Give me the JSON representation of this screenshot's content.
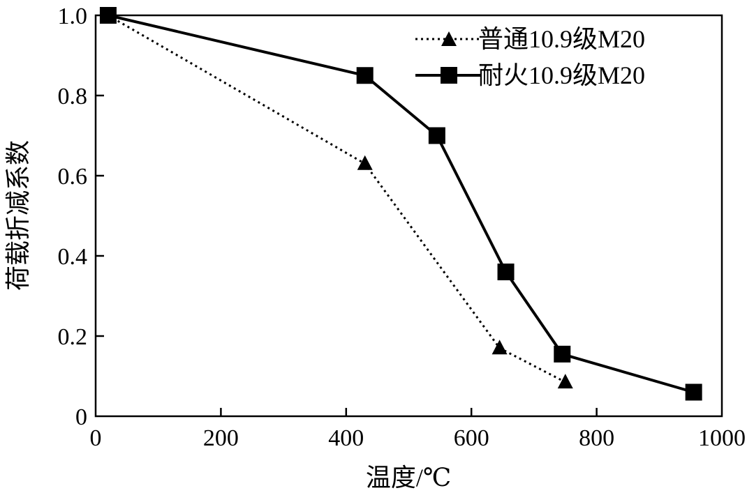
{
  "chart_data": {
    "type": "line",
    "xlabel": "温度/℃",
    "ylabel": "荷载折减系数",
    "xlim": [
      0,
      1000
    ],
    "ylim": [
      0,
      1.0
    ],
    "x_ticks": [
      "0",
      "200",
      "400",
      "600",
      "800",
      "1000"
    ],
    "y_ticks": [
      "0",
      "0.2",
      "0.4",
      "0.6",
      "0.8",
      "1.0"
    ],
    "grid": false,
    "legend_position": "top-right",
    "series": [
      {
        "name": "普通10.9级M20",
        "line_style": "dotted",
        "marker": "triangle",
        "color": "#000000",
        "x": [
          20,
          430,
          645,
          750
        ],
        "y": [
          1.0,
          0.63,
          0.17,
          0.085
        ]
      },
      {
        "name": "耐火10.9级M20",
        "line_style": "solid",
        "marker": "square",
        "color": "#000000",
        "x": [
          20,
          430,
          545,
          655,
          745,
          955
        ],
        "y": [
          1.0,
          0.85,
          0.7,
          0.36,
          0.155,
          0.06
        ]
      }
    ]
  }
}
